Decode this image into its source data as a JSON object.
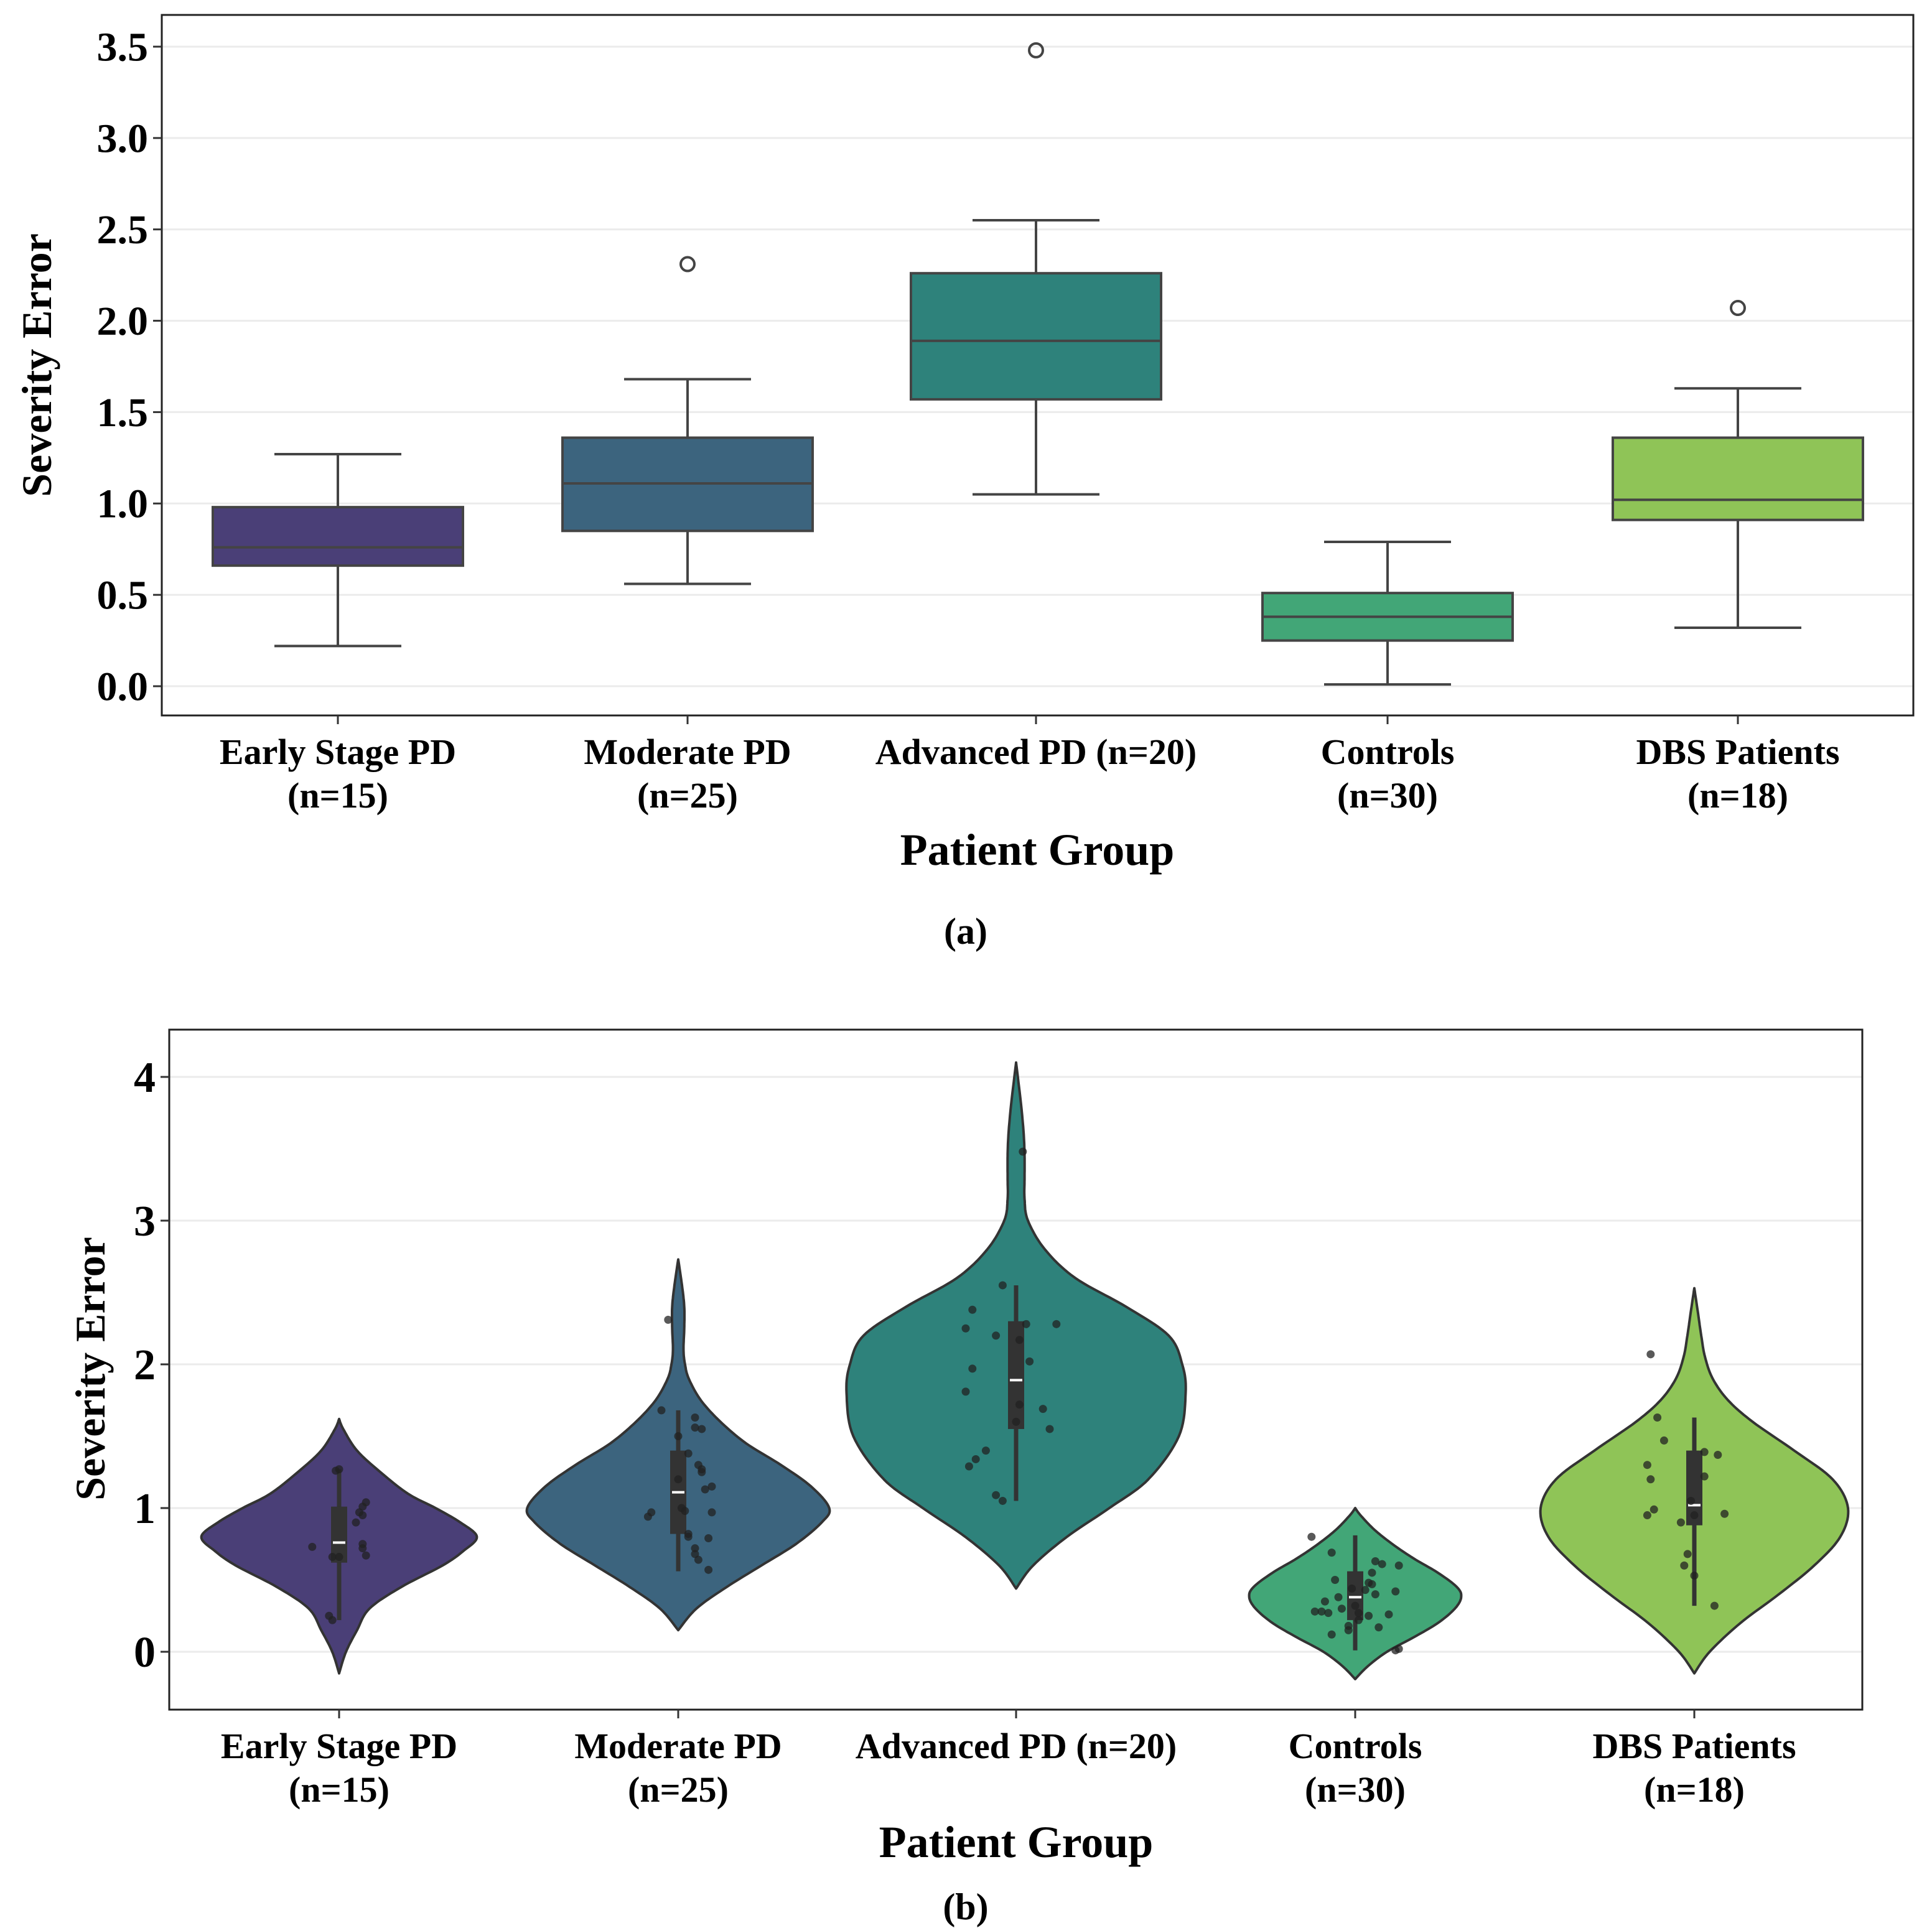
{
  "chart_data": [
    {
      "id": "a",
      "type": "box",
      "panel_label": "(a)",
      "xlabel": "Patient Group",
      "ylabel": "Severity Error",
      "ylim": [
        -0.15,
        3.65
      ],
      "yticks": [
        0.0,
        0.5,
        1.0,
        1.5,
        2.0,
        2.5,
        3.0,
        3.5
      ],
      "ytick_labels": [
        "0.0",
        "0.5",
        "1.0",
        "1.5",
        "2.0",
        "2.5",
        "3.0",
        "3.5"
      ],
      "grid": "horizontal",
      "categories": [
        {
          "line1": "Early Stage PD",
          "line2": "(n=15)"
        },
        {
          "line1": "Moderate PD",
          "line2": "(n=25)"
        },
        {
          "line1": "Advanced PD (n=20)",
          "line2": ""
        },
        {
          "line1": "Controls",
          "line2": "(n=30)"
        },
        {
          "line1": "DBS Patients",
          "line2": "(n=18)"
        }
      ],
      "series": [
        {
          "name": "Early Stage PD",
          "n": 15,
          "color": "#4a3f77",
          "whisker_low": 0.22,
          "q1": 0.66,
          "median": 0.76,
          "q3": 0.98,
          "whisker_high": 1.27,
          "outliers": []
        },
        {
          "name": "Moderate PD",
          "n": 25,
          "color": "#3c647e",
          "whisker_low": 0.56,
          "q1": 0.85,
          "median": 1.11,
          "q3": 1.36,
          "whisker_high": 1.68,
          "outliers": [
            2.31
          ]
        },
        {
          "name": "Advanced PD",
          "n": 20,
          "color": "#2e827b",
          "whisker_low": 1.05,
          "q1": 1.57,
          "median": 1.89,
          "q3": 2.26,
          "whisker_high": 2.55,
          "outliers": [
            3.48
          ]
        },
        {
          "name": "Controls",
          "n": 30,
          "color": "#42a677",
          "whisker_low": 0.01,
          "q1": 0.25,
          "median": 0.38,
          "q3": 0.51,
          "whisker_high": 0.79,
          "outliers": []
        },
        {
          "name": "DBS Patients",
          "n": 18,
          "color": "#8fc457",
          "whisker_low": 0.32,
          "q1": 0.91,
          "median": 1.02,
          "q3": 1.36,
          "whisker_high": 1.63,
          "outliers": [
            2.07
          ]
        }
      ]
    },
    {
      "id": "b",
      "type": "violin",
      "panel_label": "(b)",
      "xlabel": "Patient Group",
      "ylabel": "Severity Error",
      "ylim": [
        -0.4,
        4.3
      ],
      "yticks": [
        0,
        1,
        2,
        3,
        4
      ],
      "ytick_labels": [
        "0",
        "1",
        "2",
        "3",
        "4"
      ],
      "grid": "horizontal",
      "categories": [
        {
          "line1": "Early Stage PD",
          "line2": "(n=15)"
        },
        {
          "line1": "Moderate PD",
          "line2": "(n=25)"
        },
        {
          "line1": "Advanced PD (n=20)",
          "line2": ""
        },
        {
          "line1": "Controls",
          "line2": "(n=30)"
        },
        {
          "line1": "DBS Patients",
          "line2": "(n=18)"
        }
      ],
      "series": [
        {
          "name": "Early Stage PD",
          "n": 15,
          "color": "#4a3f77",
          "density": [
            [
              -0.15,
              0.0
            ],
            [
              0.0,
              0.05
            ],
            [
              0.15,
              0.13
            ],
            [
              0.3,
              0.22
            ],
            [
              0.45,
              0.45
            ],
            [
              0.6,
              0.75
            ],
            [
              0.7,
              0.9
            ],
            [
              0.8,
              1.0
            ],
            [
              0.9,
              0.88
            ],
            [
              1.0,
              0.7
            ],
            [
              1.1,
              0.5
            ],
            [
              1.25,
              0.3
            ],
            [
              1.4,
              0.13
            ],
            [
              1.55,
              0.03
            ],
            [
              1.62,
              0.0
            ]
          ],
          "width_scale": 0.26,
          "whisker_low": 0.22,
          "q1": 0.62,
          "median": 0.76,
          "q3": 1.01,
          "whisker_high": 1.27,
          "points": [
            [
              -0.08,
              0.73
            ],
            [
              -0.02,
              0.66
            ],
            [
              0.0,
              0.66
            ],
            [
              -0.03,
              0.25
            ],
            [
              -0.02,
              0.22
            ],
            [
              -0.01,
              1.26
            ],
            [
              0.0,
              1.27
            ],
            [
              0.06,
              0.97
            ],
            [
              0.07,
              0.95
            ],
            [
              0.08,
              1.04
            ],
            [
              0.05,
              0.9
            ],
            [
              0.07,
              0.75
            ],
            [
              0.07,
              0.72
            ],
            [
              0.08,
              0.67
            ],
            [
              0.07,
              1.01
            ]
          ]
        },
        {
          "name": "Moderate PD",
          "n": 25,
          "color": "#3c647e",
          "density": [
            [
              0.15,
              0.0
            ],
            [
              0.3,
              0.12
            ],
            [
              0.45,
              0.32
            ],
            [
              0.6,
              0.55
            ],
            [
              0.75,
              0.78
            ],
            [
              0.9,
              0.95
            ],
            [
              1.0,
              1.0
            ],
            [
              1.15,
              0.88
            ],
            [
              1.3,
              0.68
            ],
            [
              1.45,
              0.45
            ],
            [
              1.6,
              0.28
            ],
            [
              1.75,
              0.15
            ],
            [
              1.9,
              0.07
            ],
            [
              2.0,
              0.045
            ],
            [
              2.1,
              0.035
            ],
            [
              2.25,
              0.04
            ],
            [
              2.4,
              0.04
            ],
            [
              2.55,
              0.025
            ],
            [
              2.73,
              0.0
            ]
          ],
          "width_scale": 0.285,
          "whisker_low": 0.56,
          "q1": 0.82,
          "median": 1.11,
          "q3": 1.4,
          "whisker_high": 1.68,
          "points": [
            [
              -0.03,
              2.31
            ],
            [
              -0.05,
              1.68
            ],
            [
              0.0,
              1.5
            ],
            [
              0.05,
              1.63
            ],
            [
              0.05,
              1.56
            ],
            [
              0.07,
              1.55
            ],
            [
              0.03,
              1.38
            ],
            [
              0.06,
              1.3
            ],
            [
              0.07,
              1.27
            ],
            [
              0.07,
              1.25
            ],
            [
              0.08,
              1.13
            ],
            [
              0.1,
              1.15
            ],
            [
              0.0,
              1.2
            ],
            [
              0.01,
              1.0
            ],
            [
              0.02,
              0.98
            ],
            [
              -0.08,
              0.97
            ],
            [
              -0.09,
              0.94
            ],
            [
              0.1,
              0.97
            ],
            [
              0.03,
              0.82
            ],
            [
              0.03,
              0.8
            ],
            [
              0.09,
              0.79
            ],
            [
              0.05,
              0.72
            ],
            [
              0.05,
              0.68
            ],
            [
              0.06,
              0.64
            ],
            [
              0.09,
              0.57
            ]
          ]
        },
        {
          "name": "Advanced PD",
          "n": 20,
          "color": "#2e827b",
          "density": [
            [
              0.44,
              0.0
            ],
            [
              0.6,
              0.1
            ],
            [
              0.8,
              0.3
            ],
            [
              1.0,
              0.55
            ],
            [
              1.2,
              0.78
            ],
            [
              1.5,
              0.96
            ],
            [
              1.8,
              1.0
            ],
            [
              2.0,
              0.98
            ],
            [
              2.2,
              0.9
            ],
            [
              2.4,
              0.65
            ],
            [
              2.6,
              0.35
            ],
            [
              2.8,
              0.17
            ],
            [
              3.0,
              0.07
            ],
            [
              3.15,
              0.05
            ],
            [
              3.3,
              0.05
            ],
            [
              3.45,
              0.05
            ],
            [
              3.6,
              0.045
            ],
            [
              3.8,
              0.03
            ],
            [
              4.1,
              0.0
            ]
          ],
          "width_scale": 0.32,
          "whisker_low": 1.05,
          "q1": 1.55,
          "median": 1.89,
          "q3": 2.3,
          "whisker_high": 2.55,
          "points": [
            [
              0.02,
              3.48
            ],
            [
              -0.04,
              2.55
            ],
            [
              -0.13,
              2.38
            ],
            [
              -0.15,
              2.25
            ],
            [
              0.03,
              2.28
            ],
            [
              0.12,
              2.28
            ],
            [
              -0.06,
              2.2
            ],
            [
              0.01,
              2.17
            ],
            [
              0.04,
              2.02
            ],
            [
              -0.13,
              1.97
            ],
            [
              -0.15,
              1.81
            ],
            [
              0.01,
              1.72
            ],
            [
              0.08,
              1.69
            ],
            [
              0.1,
              1.55
            ],
            [
              -0.09,
              1.4
            ],
            [
              0.0,
              1.6
            ],
            [
              -0.12,
              1.34
            ],
            [
              -0.14,
              1.29
            ],
            [
              -0.06,
              1.09
            ],
            [
              -0.04,
              1.05
            ]
          ]
        },
        {
          "name": "Controls",
          "n": 30,
          "color": "#42a677",
          "density": [
            [
              -0.19,
              0.0
            ],
            [
              -0.1,
              0.12
            ],
            [
              0.0,
              0.3
            ],
            [
              0.1,
              0.55
            ],
            [
              0.2,
              0.78
            ],
            [
              0.3,
              0.94
            ],
            [
              0.38,
              1.0
            ],
            [
              0.45,
              0.96
            ],
            [
              0.55,
              0.78
            ],
            [
              0.65,
              0.55
            ],
            [
              0.75,
              0.35
            ],
            [
              0.85,
              0.18
            ],
            [
              0.95,
              0.05
            ],
            [
              1.0,
              0.0
            ]
          ],
          "width_scale": 0.2,
          "whisker_low": 0.01,
          "q1": 0.22,
          "median": 0.38,
          "q3": 0.56,
          "whisker_high": 0.81,
          "points": [
            [
              -0.13,
              0.8
            ],
            [
              -0.07,
              0.69
            ],
            [
              0.06,
              0.63
            ],
            [
              0.08,
              0.61
            ],
            [
              0.13,
              0.6
            ],
            [
              -0.06,
              0.5
            ],
            [
              0.04,
              0.48
            ],
            [
              0.05,
              0.47
            ],
            [
              0.03,
              0.43
            ],
            [
              0.06,
              0.4
            ],
            [
              0.12,
              0.42
            ],
            [
              -0.01,
              0.44
            ],
            [
              -0.05,
              0.38
            ],
            [
              -0.09,
              0.35
            ],
            [
              0.0,
              0.32
            ],
            [
              -0.1,
              0.28
            ],
            [
              -0.12,
              0.28
            ],
            [
              -0.08,
              0.27
            ],
            [
              0.01,
              0.27
            ],
            [
              0.04,
              0.25
            ],
            [
              0.1,
              0.26
            ],
            [
              -0.02,
              0.18
            ],
            [
              -0.02,
              0.15
            ],
            [
              0.07,
              0.17
            ],
            [
              -0.07,
              0.12
            ],
            [
              0.01,
              0.22
            ],
            [
              -0.04,
              0.3
            ],
            [
              0.05,
              0.55
            ],
            [
              0.13,
              0.02
            ],
            [
              0.12,
              0.01
            ]
          ]
        },
        {
          "name": "DBS Patients",
          "n": 18,
          "color": "#8fc457",
          "density": [
            [
              -0.15,
              0.0
            ],
            [
              0.0,
              0.1
            ],
            [
              0.2,
              0.3
            ],
            [
              0.4,
              0.55
            ],
            [
              0.6,
              0.78
            ],
            [
              0.8,
              0.95
            ],
            [
              1.0,
              1.0
            ],
            [
              1.2,
              0.9
            ],
            [
              1.4,
              0.65
            ],
            [
              1.6,
              0.38
            ],
            [
              1.75,
              0.22
            ],
            [
              1.9,
              0.12
            ],
            [
              2.05,
              0.07
            ],
            [
              2.2,
              0.045
            ],
            [
              2.35,
              0.025
            ],
            [
              2.53,
              0.0
            ]
          ],
          "width_scale": 0.29,
          "whisker_low": 0.32,
          "q1": 0.88,
          "median": 1.02,
          "q3": 1.4,
          "whisker_high": 1.63,
          "points": [
            [
              -0.13,
              2.07
            ],
            [
              -0.11,
              1.63
            ],
            [
              -0.09,
              1.47
            ],
            [
              0.03,
              1.39
            ],
            [
              0.07,
              1.37
            ],
            [
              -0.14,
              1.3
            ],
            [
              -0.13,
              1.2
            ],
            [
              0.03,
              1.22
            ],
            [
              -0.12,
              0.99
            ],
            [
              -0.14,
              0.95
            ],
            [
              0.09,
              0.96
            ],
            [
              -0.04,
              0.9
            ],
            [
              0.0,
              0.95
            ],
            [
              -0.02,
              0.68
            ],
            [
              -0.03,
              0.6
            ],
            [
              0.0,
              0.53
            ],
            [
              0.06,
              0.32
            ],
            [
              -0.01,
              1.05
            ]
          ]
        }
      ]
    }
  ]
}
